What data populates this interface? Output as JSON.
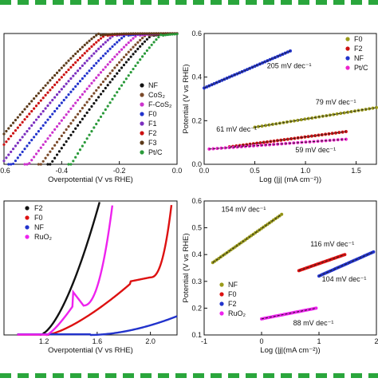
{
  "frame": {
    "dash_color": "#2aa63c"
  },
  "chart_data": [
    {
      "type": "line",
      "panel": "top-left",
      "xlabel": "Overpotential (V vs RHE)",
      "ylabel": "",
      "xlim": [
        -0.6,
        0.0
      ],
      "ylim": [
        -40,
        0
      ],
      "x_ticks": [
        "-0.6",
        "-0.4",
        "-0.2",
        "0.0"
      ],
      "legend": {
        "position": "right"
      },
      "series": [
        {
          "name": "NF",
          "color": "#111111",
          "onset": -0.08,
          "slope": 130
        },
        {
          "name": "CoS₂",
          "color": "#7a4a2a",
          "onset": -0.1,
          "slope": 125
        },
        {
          "name": "F-CoS₂",
          "color": "#cc33cc",
          "onset": -0.13,
          "slope": 120
        },
        {
          "name": "F0",
          "color": "#2233cc",
          "onset": -0.17,
          "slope": 115
        },
        {
          "name": "F1",
          "color": "#7b2fbf",
          "onset": -0.21,
          "slope": 115
        },
        {
          "name": "F2",
          "color": "#cc1111",
          "onset": -0.24,
          "slope": 110
        },
        {
          "name": "F3",
          "color": "#5c3a1a",
          "onset": -0.27,
          "slope": 110
        },
        {
          "name": "Pt/C",
          "color": "#2a9a3a",
          "onset": -0.05,
          "slope": 150
        }
      ]
    },
    {
      "type": "line",
      "panel": "top-right",
      "xlabel": "Log (|j| (mA cm⁻²))",
      "ylabel": "Potential (V vs RHE)",
      "xlim": [
        0.0,
        1.7
      ],
      "ylim": [
        0.0,
        0.6
      ],
      "x_ticks": [
        "0.0",
        "0.5",
        "1.0",
        "1.5"
      ],
      "y_ticks": [
        "0.0",
        "0.2",
        "0.4",
        "0.6"
      ],
      "legend": {
        "position": "top-right"
      },
      "series": [
        {
          "name": "F0",
          "color": "#9a9a1a",
          "x": [
            0.5,
            1.7
          ],
          "y": [
            0.17,
            0.26
          ]
        },
        {
          "name": "F2",
          "color": "#cc1111",
          "x": [
            0.25,
            1.4
          ],
          "y": [
            0.08,
            0.15
          ]
        },
        {
          "name": "NF",
          "color": "#2233cc",
          "x": [
            0.0,
            0.85
          ],
          "y": [
            0.35,
            0.52
          ]
        },
        {
          "name": "Pt/C",
          "color": "#ee22cc",
          "x": [
            0.05,
            1.4
          ],
          "y": [
            0.07,
            0.115
          ]
        }
      ],
      "annotations": [
        {
          "text": "205 mV dec⁻¹",
          "x": 0.62,
          "y": 0.44
        },
        {
          "text": "79 mV dec⁻¹",
          "x": 1.1,
          "y": 0.275
        },
        {
          "text": "61 mV dec⁻¹",
          "x": 0.12,
          "y": 0.15
        },
        {
          "text": "59 mV dec⁻¹",
          "x": 0.9,
          "y": 0.055
        }
      ]
    },
    {
      "type": "line",
      "panel": "bottom-left",
      "xlabel": "Overpotential (V vs RHE)",
      "ylabel": "",
      "xlim": [
        0.9,
        2.2
      ],
      "ylim": [
        0,
        100
      ],
      "x_ticks": [
        "1.2",
        "1.6",
        "2.0"
      ],
      "legend": {
        "position": "top-left"
      },
      "series": [
        {
          "name": "F2",
          "color": "#111111"
        },
        {
          "name": "F0",
          "color": "#dd1111"
        },
        {
          "name": "NF",
          "color": "#2233cc"
        },
        {
          "name": "RuO₂",
          "color": "#ee22ee"
        }
      ]
    },
    {
      "type": "line",
      "panel": "bottom-right",
      "xlabel": "Log (|j|(mA cm⁻²))",
      "ylabel": "Potential (V vs RHE)",
      "xlim": [
        -1.0,
        2.0
      ],
      "ylim": [
        0.1,
        0.6
      ],
      "x_ticks": [
        "-1",
        "0",
        "1",
        "2"
      ],
      "y_ticks": [
        "0.1",
        "0.2",
        "0.3",
        "0.4",
        "0.5",
        "0.6"
      ],
      "legend": {
        "position": "bottom-left"
      },
      "series": [
        {
          "name": "NF",
          "color": "#9a9a1a",
          "x": [
            -0.85,
            0.35
          ],
          "y": [
            0.37,
            0.55
          ]
        },
        {
          "name": "F0",
          "color": "#dd1111",
          "x": [
            0.65,
            1.45
          ],
          "y": [
            0.34,
            0.4
          ]
        },
        {
          "name": "F2",
          "color": "#2233cc",
          "x": [
            1.0,
            1.95
          ],
          "y": [
            0.32,
            0.41
          ]
        },
        {
          "name": "RuO₂",
          "color": "#ee22ee",
          "x": [
            0.0,
            0.95
          ],
          "y": [
            0.16,
            0.2
          ]
        }
      ],
      "annotations": [
        {
          "text": "154 mV dec⁻¹",
          "x": -0.7,
          "y": 0.56
        },
        {
          "text": "116 mV dec⁻¹",
          "x": 0.85,
          "y": 0.43
        },
        {
          "text": "104 mV dec⁻¹",
          "x": 1.05,
          "y": 0.3
        },
        {
          "text": "88 mV dec⁻¹",
          "x": 0.55,
          "y": 0.135
        }
      ]
    }
  ]
}
